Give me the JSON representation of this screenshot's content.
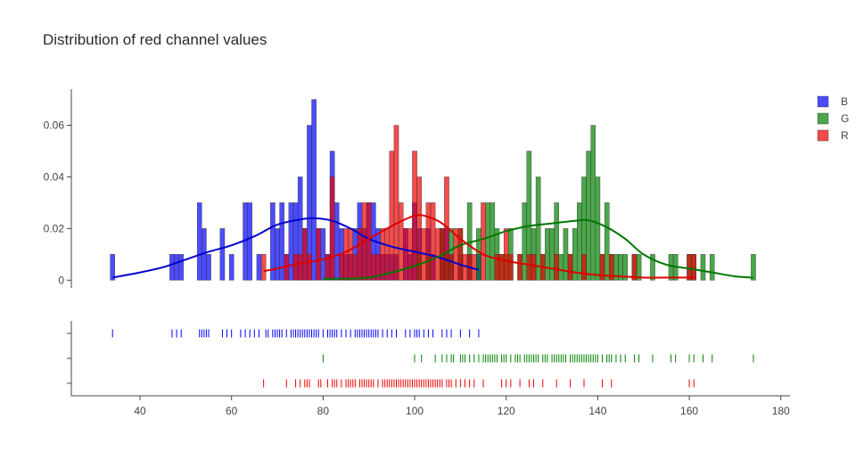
{
  "chart_data": {
    "type": "histogram-distplot",
    "title": "Distribution of red channel values",
    "x_range": [
      25,
      182
    ],
    "y_range": [
      -0.003,
      0.074
    ],
    "x_ticks": [
      40,
      60,
      80,
      100,
      120,
      140,
      160,
      180
    ],
    "y_ticks": [
      0,
      0.02,
      0.04,
      0.06
    ],
    "y_tick_labels": [
      "0",
      "0.02",
      "0.04",
      "0.06"
    ],
    "bin_width": 1,
    "legend": [
      "B",
      "G",
      "R"
    ],
    "series": [
      {
        "name": "B",
        "color": "#0000ff",
        "curve_color": "#0000cc",
        "hist": [
          [
            34,
            0.01
          ],
          [
            47,
            0.01
          ],
          [
            48,
            0.01
          ],
          [
            49,
            0.01
          ],
          [
            53,
            0.03
          ],
          [
            54,
            0.02
          ],
          [
            55,
            0.01
          ],
          [
            58,
            0.02
          ],
          [
            60,
            0.01
          ],
          [
            63,
            0.03
          ],
          [
            64,
            0.03
          ],
          [
            66,
            0.01
          ],
          [
            69,
            0.03
          ],
          [
            70,
            0.02
          ],
          [
            71,
            0.03
          ],
          [
            72,
            0.01
          ],
          [
            73,
            0.03
          ],
          [
            74,
            0.03
          ],
          [
            75,
            0.04
          ],
          [
            76,
            0.02
          ],
          [
            77,
            0.06
          ],
          [
            78,
            0.07
          ],
          [
            79,
            0.02
          ],
          [
            80,
            0.02
          ],
          [
            81,
            0.01
          ],
          [
            82,
            0.05
          ],
          [
            83,
            0.03
          ],
          [
            84,
            0.02
          ],
          [
            85,
            0.01
          ],
          [
            86,
            0.01
          ],
          [
            87,
            0.02
          ],
          [
            88,
            0.03
          ],
          [
            89,
            0.02
          ],
          [
            90,
            0.03
          ],
          [
            91,
            0.03
          ],
          [
            92,
            0.02
          ],
          [
            93,
            0.01
          ],
          [
            94,
            0.01
          ],
          [
            95,
            0.01
          ],
          [
            96,
            0.01
          ],
          [
            98,
            0.02
          ],
          [
            99,
            0.01
          ],
          [
            100,
            0.03
          ],
          [
            101,
            0.02
          ],
          [
            103,
            0.02
          ],
          [
            104,
            0.01
          ],
          [
            106,
            0.02
          ],
          [
            107,
            0.02
          ],
          [
            108,
            0.01
          ],
          [
            110,
            0.01
          ],
          [
            112,
            0.01
          ],
          [
            114,
            0.01
          ]
        ],
        "kde": [
          [
            34,
            0.001
          ],
          [
            40,
            0.003
          ],
          [
            45,
            0.005
          ],
          [
            50,
            0.008
          ],
          [
            55,
            0.011
          ],
          [
            60,
            0.0135
          ],
          [
            65,
            0.017
          ],
          [
            70,
            0.0215
          ],
          [
            75,
            0.0235
          ],
          [
            78,
            0.024
          ],
          [
            82,
            0.023
          ],
          [
            86,
            0.02
          ],
          [
            90,
            0.016
          ],
          [
            95,
            0.013
          ],
          [
            100,
            0.011
          ],
          [
            105,
            0.009
          ],
          [
            110,
            0.006
          ],
          [
            114,
            0.004
          ]
        ],
        "rug": [
          34,
          47,
          48,
          49,
          53,
          53.5,
          54,
          54.5,
          55,
          58,
          59,
          60,
          62,
          63,
          64,
          65,
          66,
          67.5,
          68,
          69,
          69.5,
          70,
          70.5,
          71,
          72,
          73,
          73.5,
          74,
          74.5,
          75,
          75.5,
          76,
          76.5,
          77,
          77.5,
          78,
          78.5,
          79,
          80,
          81,
          81.5,
          82,
          82.5,
          83,
          84,
          85,
          86,
          87,
          87.5,
          88,
          88.5,
          89,
          89.5,
          90,
          90.5,
          91,
          91.5,
          92,
          93,
          94,
          95,
          96,
          98,
          99,
          100,
          100.5,
          101,
          102,
          103,
          104,
          106,
          107,
          108,
          110,
          112,
          114
        ]
      },
      {
        "name": "G",
        "color": "#008000",
        "curve_color": "#007700",
        "hist": [
          [
            80,
            0.0
          ],
          [
            101,
            0.01
          ],
          [
            103,
            0.01
          ],
          [
            106,
            0.02
          ],
          [
            107,
            0.01
          ],
          [
            108,
            0.02
          ],
          [
            110,
            0.02
          ],
          [
            112,
            0.03
          ],
          [
            114,
            0.02
          ],
          [
            116,
            0.03
          ],
          [
            117,
            0.03
          ],
          [
            118,
            0.02
          ],
          [
            119,
            0.01
          ],
          [
            120,
            0.01
          ],
          [
            121,
            0.02
          ],
          [
            123,
            0.01
          ],
          [
            124,
            0.03
          ],
          [
            125,
            0.05
          ],
          [
            126,
            0.02
          ],
          [
            127,
            0.04
          ],
          [
            128,
            0.01
          ],
          [
            129,
            0.02
          ],
          [
            130,
            0.02
          ],
          [
            131,
            0.03
          ],
          [
            132,
            0.01
          ],
          [
            133,
            0.02
          ],
          [
            134,
            0.01
          ],
          [
            135,
            0.02
          ],
          [
            136,
            0.03
          ],
          [
            137,
            0.04
          ],
          [
            138,
            0.05
          ],
          [
            139,
            0.06
          ],
          [
            140,
            0.04
          ],
          [
            141,
            0.01
          ],
          [
            142,
            0.03
          ],
          [
            143,
            0.01
          ],
          [
            144,
            0.01
          ],
          [
            145,
            0.01
          ],
          [
            146,
            0.01
          ],
          [
            148,
            0.01
          ],
          [
            149,
            0.01
          ],
          [
            152,
            0.01
          ],
          [
            156,
            0.01
          ],
          [
            157,
            0.01
          ],
          [
            160,
            0.01
          ],
          [
            161,
            0.01
          ],
          [
            163,
            0.01
          ],
          [
            165,
            0.01
          ],
          [
            174,
            0.01
          ]
        ],
        "kde": [
          [
            80,
            0.0005
          ],
          [
            85,
            0.0006
          ],
          [
            90,
            0.001
          ],
          [
            95,
            0.003
          ],
          [
            100,
            0.0055
          ],
          [
            105,
            0.009
          ],
          [
            110,
            0.0135
          ],
          [
            115,
            0.016
          ],
          [
            120,
            0.019
          ],
          [
            125,
            0.021
          ],
          [
            130,
            0.022
          ],
          [
            135,
            0.023
          ],
          [
            138,
            0.0232
          ],
          [
            142,
            0.0205
          ],
          [
            146,
            0.016
          ],
          [
            150,
            0.01
          ],
          [
            155,
            0.006
          ],
          [
            160,
            0.0045
          ],
          [
            165,
            0.003
          ],
          [
            170,
            0.0015
          ],
          [
            174,
            0.001
          ]
        ],
        "rug": [
          80,
          100,
          101.5,
          104.5,
          106,
          107,
          108,
          108.5,
          110,
          110.5,
          111,
          112,
          113,
          114,
          115,
          115.5,
          116,
          116.5,
          117,
          117.5,
          118,
          119,
          119.5,
          120,
          121,
          122,
          122.5,
          123,
          124,
          124.5,
          125,
          125.5,
          126,
          126.5,
          127,
          128,
          128.5,
          129,
          130,
          130.5,
          131,
          131.5,
          132,
          132.5,
          133,
          134,
          134.5,
          135,
          135.5,
          136,
          136.5,
          137,
          137.5,
          138,
          138.5,
          139,
          139.5,
          140,
          141,
          142,
          142.5,
          143,
          144,
          145,
          146,
          148,
          149,
          152,
          156,
          157,
          160,
          161,
          163,
          165,
          174
        ]
      },
      {
        "name": "R",
        "color": "#ee0000",
        "curve_color": "#dd0000",
        "hist": [
          [
            67,
            0.01
          ],
          [
            72,
            0.01
          ],
          [
            74,
            0.01
          ],
          [
            75,
            0.01
          ],
          [
            76,
            0.02
          ],
          [
            77,
            0.01
          ],
          [
            79,
            0.02
          ],
          [
            81,
            0.01
          ],
          [
            82,
            0.04
          ],
          [
            84,
            0.01
          ],
          [
            85,
            0.02
          ],
          [
            86,
            0.02
          ],
          [
            87,
            0.01
          ],
          [
            88,
            0.02
          ],
          [
            89,
            0.03
          ],
          [
            90,
            0.03
          ],
          [
            91,
            0.01
          ],
          [
            92,
            0.01
          ],
          [
            93,
            0.02
          ],
          [
            94,
            0.02
          ],
          [
            95,
            0.05
          ],
          [
            96,
            0.06
          ],
          [
            97,
            0.03
          ],
          [
            98,
            0.02
          ],
          [
            99,
            0.02
          ],
          [
            100,
            0.05
          ],
          [
            101,
            0.04
          ],
          [
            102,
            0.02
          ],
          [
            103,
            0.03
          ],
          [
            104,
            0.03
          ],
          [
            105,
            0.02
          ],
          [
            106,
            0.02
          ],
          [
            107,
            0.04
          ],
          [
            108,
            0.01
          ],
          [
            109,
            0.02
          ],
          [
            110,
            0.02
          ],
          [
            111,
            0.01
          ],
          [
            112,
            0.01
          ],
          [
            113,
            0.01
          ],
          [
            115,
            0.03
          ],
          [
            118,
            0.01
          ],
          [
            119,
            0.01
          ],
          [
            120,
            0.02
          ],
          [
            121,
            0.01
          ],
          [
            123,
            0.01
          ],
          [
            125,
            0.01
          ],
          [
            126,
            0.01
          ],
          [
            128,
            0.01
          ],
          [
            131,
            0.01
          ],
          [
            134,
            0.01
          ],
          [
            137,
            0.01
          ],
          [
            141,
            0.01
          ],
          [
            143,
            0.01
          ],
          [
            148,
            0.01
          ],
          [
            160,
            0.01
          ],
          [
            161,
            0.01
          ]
        ],
        "kde": [
          [
            67,
            0.0035
          ],
          [
            70,
            0.0045
          ],
          [
            75,
            0.0065
          ],
          [
            80,
            0.008
          ],
          [
            85,
            0.011
          ],
          [
            90,
            0.016
          ],
          [
            95,
            0.021
          ],
          [
            100,
            0.025
          ],
          [
            103,
            0.0245
          ],
          [
            106,
            0.022
          ],
          [
            110,
            0.016
          ],
          [
            115,
            0.01
          ],
          [
            120,
            0.0075
          ],
          [
            125,
            0.006
          ],
          [
            130,
            0.0045
          ],
          [
            135,
            0.003
          ],
          [
            140,
            0.002
          ],
          [
            145,
            0.0015
          ],
          [
            150,
            0.001
          ],
          [
            155,
            0.001
          ],
          [
            161,
            0.001
          ]
        ],
        "rug": [
          67,
          72,
          74,
          75,
          76,
          76.5,
          77,
          79,
          79.5,
          81,
          82,
          82.5,
          83,
          84,
          85,
          85.5,
          86,
          86.5,
          87,
          88,
          88.5,
          89,
          89.5,
          90,
          90.5,
          91,
          92,
          93,
          93.5,
          94,
          94.5,
          95,
          95.5,
          96,
          96.5,
          97,
          97.5,
          98,
          98.5,
          99,
          99.5,
          100,
          100.5,
          101,
          101.5,
          102,
          102.5,
          103,
          103.5,
          104,
          104.5,
          105,
          105.5,
          106,
          107,
          107.5,
          108,
          109,
          110,
          111,
          112,
          113,
          115,
          119,
          120,
          121,
          123,
          125,
          126,
          128,
          131,
          134,
          137,
          141,
          143,
          160,
          161
        ]
      }
    ]
  }
}
